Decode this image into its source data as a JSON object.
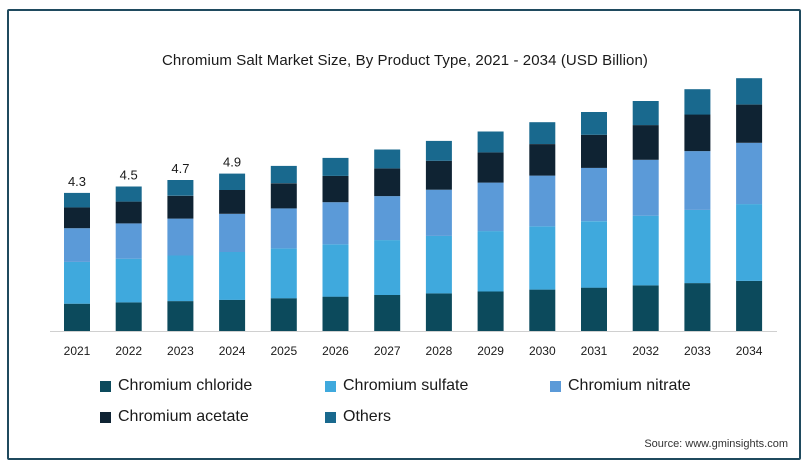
{
  "chart_data": {
    "type": "bar",
    "stacked": true,
    "title": "Chromium Salt Market Size, By Product Type, 2021 - 2034 (USD Billion)",
    "categories": [
      "2021",
      "2022",
      "2023",
      "2024",
      "2025",
      "2026",
      "2027",
      "2028",
      "2029",
      "2030",
      "2031",
      "2032",
      "2033",
      "2034"
    ],
    "series": [
      {
        "name": "Chromium chloride",
        "color": "#0c4a5c",
        "values": [
          0.85,
          0.89,
          0.93,
          0.97,
          1.02,
          1.07,
          1.12,
          1.17,
          1.23,
          1.29,
          1.35,
          1.42,
          1.49,
          1.56
        ]
      },
      {
        "name": "Chromium sulfate",
        "color": "#3fa9dd",
        "values": [
          1.3,
          1.36,
          1.42,
          1.49,
          1.55,
          1.63,
          1.71,
          1.79,
          1.88,
          1.97,
          2.07,
          2.17,
          2.28,
          2.39
        ]
      },
      {
        "name": "Chromium nitrate",
        "color": "#5b9ad8",
        "values": [
          1.05,
          1.1,
          1.15,
          1.19,
          1.25,
          1.31,
          1.37,
          1.44,
          1.51,
          1.58,
          1.66,
          1.74,
          1.83,
          1.91
        ]
      },
      {
        "name": "Chromium acetate",
        "color": "#0f2333",
        "values": [
          0.65,
          0.68,
          0.71,
          0.74,
          0.78,
          0.82,
          0.86,
          0.9,
          0.94,
          0.98,
          1.03,
          1.08,
          1.14,
          1.19
        ]
      },
      {
        "name": "Others",
        "color": "#19698e",
        "values": [
          0.45,
          0.47,
          0.49,
          0.51,
          0.54,
          0.56,
          0.59,
          0.62,
          0.65,
          0.68,
          0.71,
          0.75,
          0.79,
          0.82
        ]
      }
    ],
    "data_labels": [
      "4.3",
      "4.5",
      "4.7",
      "4.9",
      "",
      "",
      "",
      "",
      "",
      "",
      "",
      "",
      "",
      ""
    ],
    "ylim": [
      0,
      8.5
    ],
    "grid": false,
    "legend_position": "bottom"
  },
  "source_text": "Source: www.gminsights.com"
}
